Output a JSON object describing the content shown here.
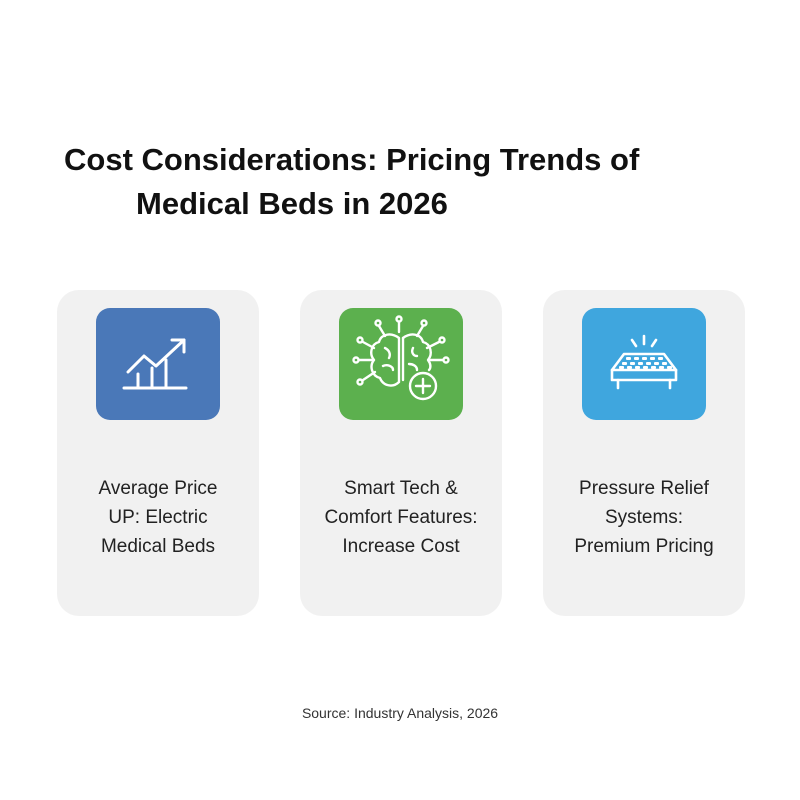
{
  "title": {
    "line1": "Cost Considerations: Pricing Trends of",
    "line2": "Medical Beds in 2026"
  },
  "cards": [
    {
      "icon": "trend-up-chart-icon",
      "color": "#4a78b8",
      "lines": [
        "Average Price",
        "UP: Electric",
        "Medical Beds"
      ]
    },
    {
      "icon": "brain-circuit-plus-icon",
      "color": "#5cb04e",
      "lines": [
        "Smart Tech &",
        "Comfort Features:",
        "Increase Cost"
      ]
    },
    {
      "icon": "mattress-bed-icon",
      "color": "#3fa6de",
      "lines": [
        "Pressure Relief",
        "Systems:",
        "Premium Pricing"
      ]
    }
  ],
  "footer": {
    "source": "Source: Industry Analysis, 2026"
  }
}
